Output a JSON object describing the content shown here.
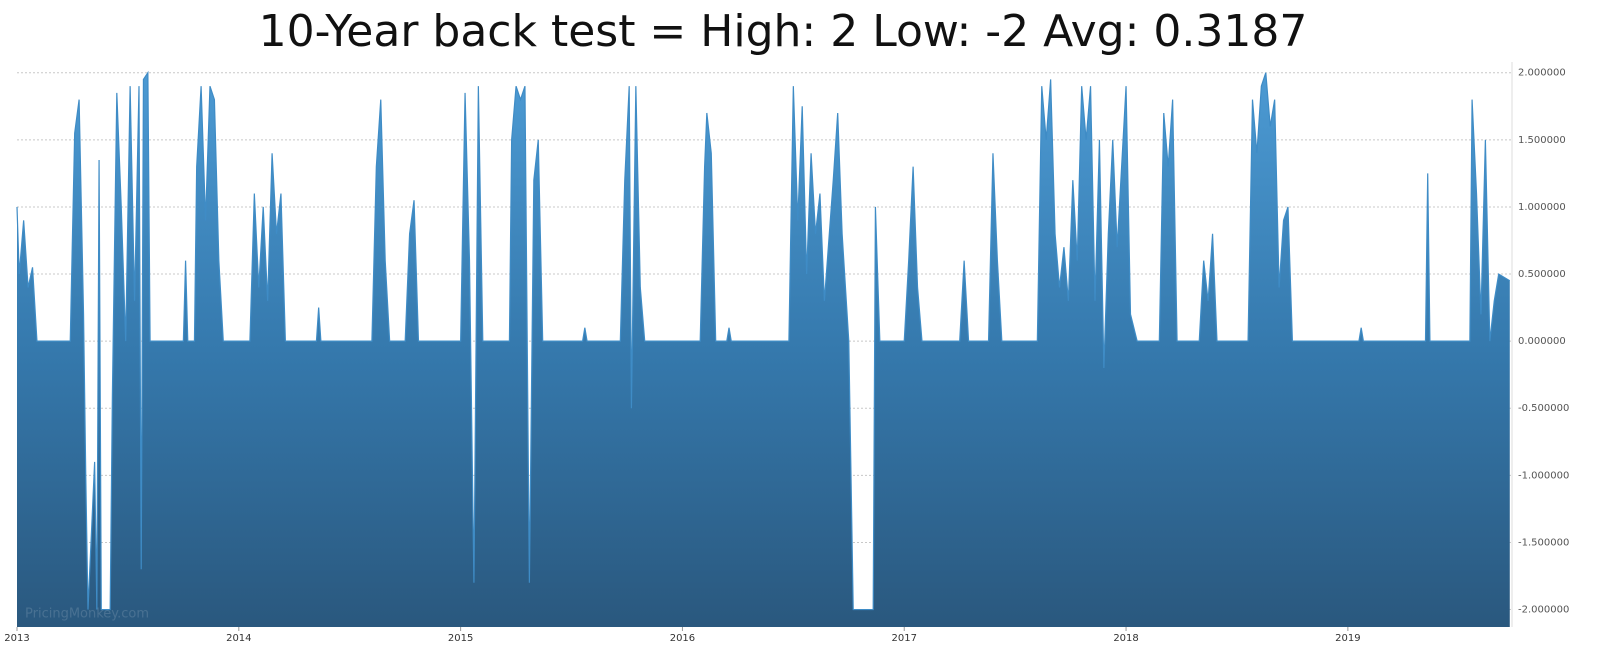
{
  "chart_data": {
    "type": "area",
    "title": "10-Year back test = High: 2 Low: -2  Avg: 0.3187",
    "watermark": "PricingMonkey.com",
    "color": "#3f8cc6",
    "grid": true,
    "xlim": [
      2013,
      2019.74
    ],
    "xticks": [
      2013,
      2014,
      2015,
      2016,
      2017,
      2018,
      2019
    ],
    "ylim": [
      -2.13,
      2.08
    ],
    "yticks": [
      {
        "value": 2,
        "label": "2.000000"
      },
      {
        "value": 1.5,
        "label": "1.500000"
      },
      {
        "value": 1,
        "label": "1.000000"
      },
      {
        "value": 0.5,
        "label": "0.500000"
      },
      {
        "value": 0,
        "label": "0.000000"
      },
      {
        "value": -0.5,
        "label": "-0.500000"
      },
      {
        "value": -1,
        "label": "-1.000000"
      },
      {
        "value": -1.5,
        "label": "-1.500000"
      },
      {
        "value": -2,
        "label": "-2.000000"
      }
    ],
    "x": [
      2013.0,
      2013.01,
      2013.03,
      2013.05,
      2013.07,
      2013.09,
      2013.24,
      2013.26,
      2013.28,
      2013.3,
      2013.31,
      2013.32,
      2013.35,
      2013.36,
      2013.37,
      2013.38,
      2013.42,
      2013.43,
      2013.45,
      2013.47,
      2013.49,
      2013.51,
      2013.53,
      2013.55,
      2013.56,
      2013.57,
      2013.59,
      2013.6,
      2013.75,
      2013.76,
      2013.77,
      2013.8,
      2013.81,
      2013.83,
      2013.85,
      2013.87,
      2013.89,
      2013.91,
      2013.93,
      2014.05,
      2014.07,
      2014.09,
      2014.11,
      2014.13,
      2014.15,
      2014.17,
      2014.19,
      2014.21,
      2014.35,
      2014.36,
      2014.37,
      2014.6,
      2014.62,
      2014.64,
      2014.66,
      2014.68,
      2014.75,
      2014.77,
      2014.79,
      2014.81,
      2015.0,
      2015.02,
      2015.04,
      2015.06,
      2015.08,
      2015.1,
      2015.22,
      2015.23,
      2015.25,
      2015.27,
      2015.29,
      2015.31,
      2015.33,
      2015.35,
      2015.37,
      2015.55,
      2015.56,
      2015.57,
      2015.72,
      2015.74,
      2015.76,
      2015.77,
      2015.79,
      2015.81,
      2015.83,
      2016.08,
      2016.1,
      2016.11,
      2016.13,
      2016.15,
      2016.2,
      2016.21,
      2016.22,
      2016.48,
      2016.5,
      2016.52,
      2016.54,
      2016.56,
      2016.58,
      2016.6,
      2016.62,
      2016.64,
      2016.68,
      2016.7,
      2016.72,
      2016.75,
      2016.77,
      2016.86,
      2016.87,
      2016.89,
      2017.0,
      2017.02,
      2017.04,
      2017.06,
      2017.08,
      2017.25,
      2017.27,
      2017.29,
      2017.38,
      2017.4,
      2017.42,
      2017.44,
      2017.6,
      2017.62,
      2017.64,
      2017.66,
      2017.68,
      2017.7,
      2017.72,
      2017.74,
      2017.76,
      2017.78,
      2017.8,
      2017.82,
      2017.84,
      2017.86,
      2017.88,
      2017.9,
      2017.92,
      2017.94,
      2017.96,
      2018.0,
      2018.02,
      2018.05,
      2018.15,
      2018.17,
      2018.19,
      2018.21,
      2018.23,
      2018.33,
      2018.35,
      2018.37,
      2018.39,
      2018.41,
      2018.55,
      2018.57,
      2018.59,
      2018.61,
      2018.63,
      2018.65,
      2018.67,
      2018.69,
      2018.71,
      2018.73,
      2018.75,
      2019.05,
      2019.06,
      2019.07,
      2019.35,
      2019.36,
      2019.37,
      2019.55,
      2019.56,
      2019.58,
      2019.6,
      2019.62,
      2019.64,
      2019.66,
      2019.68,
      2019.73
    ],
    "values": [
      1.0,
      0.5,
      0.9,
      0.4,
      0.55,
      0,
      0,
      1.55,
      1.8,
      0.2,
      -1.0,
      -2,
      -0.9,
      -2,
      1.35,
      -2,
      -2,
      -0.4,
      1.85,
      1.0,
      0,
      1.9,
      0.3,
      1.9,
      -1.7,
      1.95,
      2.0,
      0,
      0,
      0.6,
      0,
      0,
      1.3,
      1.9,
      0.9,
      1.9,
      1.8,
      0.6,
      0,
      0,
      1.1,
      0.4,
      1.0,
      0.3,
      1.4,
      0.8,
      1.1,
      0,
      0,
      0.25,
      0,
      0,
      1.3,
      1.8,
      0.6,
      0,
      0,
      0.8,
      1.05,
      0,
      0,
      1.85,
      0.6,
      -1.8,
      1.9,
      0,
      0,
      1.5,
      1.9,
      1.8,
      1.9,
      -1.8,
      1.2,
      1.5,
      0,
      0,
      0.1,
      0,
      0,
      1.2,
      1.9,
      -0.5,
      1.9,
      0.4,
      0,
      0,
      1.3,
      1.7,
      1.4,
      0,
      0,
      0.1,
      0,
      0,
      1.9,
      0.9,
      1.75,
      0.5,
      1.4,
      0.8,
      1.1,
      0.3,
      1.2,
      1.7,
      0.8,
      0,
      -2,
      -2,
      1.0,
      0,
      0,
      0.6,
      1.3,
      0.4,
      0,
      0,
      0.6,
      0,
      0,
      1.4,
      0.6,
      0,
      0,
      1.9,
      1.5,
      1.95,
      0.8,
      0.4,
      0.7,
      0.3,
      1.2,
      0.6,
      1.9,
      1.5,
      1.9,
      0.3,
      1.5,
      -0.2,
      0.8,
      1.5,
      0.7,
      1.9,
      0.2,
      0,
      0,
      1.7,
      1.3,
      1.8,
      0,
      0,
      0.6,
      0.3,
      0.8,
      0,
      0,
      1.8,
      1.4,
      1.9,
      2.0,
      1.6,
      1.8,
      0.4,
      0.9,
      1.0,
      0,
      0,
      0.1,
      0,
      0,
      1.25,
      0,
      0,
      1.8,
      1.1,
      0.2,
      1.5,
      0,
      0.3,
      0.5,
      0.45
    ]
  }
}
